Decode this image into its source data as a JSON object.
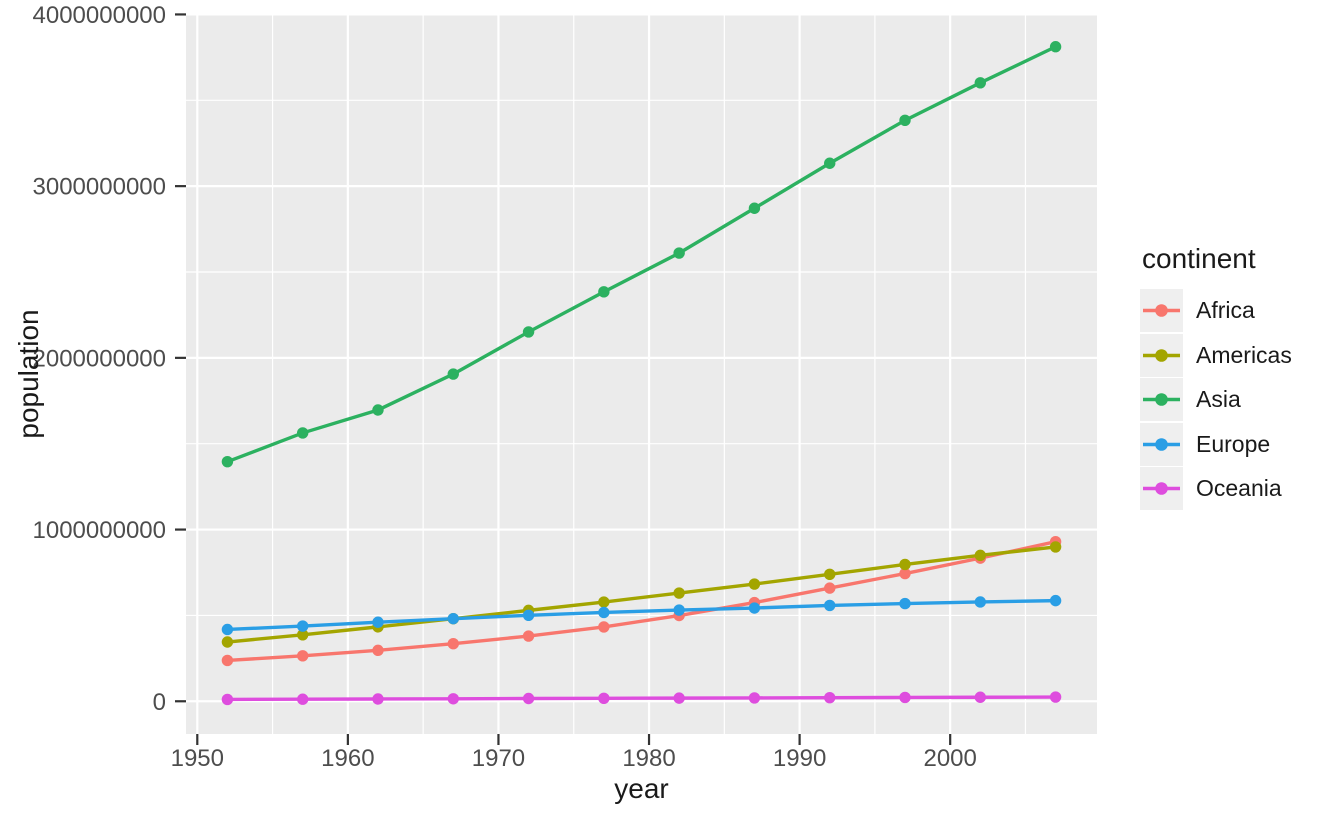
{
  "figure": {
    "background": "#FFFFFF",
    "panel_background": "#EBEBEB",
    "gridline_color": "#FFFFFF",
    "tick_mark_color": "#333333",
    "tick_label_color": "#4D4D4D",
    "axis_title_color": "#1A1A1A"
  },
  "legend": {
    "title": "continent",
    "key_background": "#EFEFEF",
    "position": "right",
    "items": [
      {
        "label": "Africa",
        "color": "#F8766D"
      },
      {
        "label": "Americas",
        "color": "#A3A500"
      },
      {
        "label": "Asia",
        "color": "#2CB160"
      },
      {
        "label": "Europe",
        "color": "#2A9EE5"
      },
      {
        "label": "Oceania",
        "color": "#DE4DDE"
      }
    ]
  },
  "chart_data": {
    "type": "line",
    "title": "",
    "xlabel": "year",
    "ylabel": "population",
    "legend_title": "continent",
    "legend_position": "right",
    "grid": "major+minor",
    "x": [
      1952,
      1957,
      1962,
      1967,
      1972,
      1977,
      1982,
      1987,
      1992,
      1997,
      2002,
      2007
    ],
    "series": [
      {
        "name": "Africa",
        "color": "#F8766D",
        "values": [
          237640501,
          264837738,
          296516865,
          335289489,
          379879541,
          433061021,
          499348587,
          574834110,
          659081517,
          743832984,
          833723916,
          929539692
        ]
      },
      {
        "name": "Americas",
        "color": "#A3A500",
        "values": [
          345152446,
          386953916,
          433270254,
          480746623,
          529384210,
          578067699,
          630290920,
          682753971,
          739274104,
          796900410,
          849772762,
          898871184
        ]
      },
      {
        "name": "Asia",
        "color": "#2CB160",
        "values": [
          1395357351,
          1562780599,
          1696357182,
          1905662900,
          2150972248,
          2384513556,
          2610135582,
          2871220762,
          3133292191,
          3383285500,
          3601802203,
          3811953827
        ]
      },
      {
        "name": "Europe",
        "color": "#2A9EE5",
        "values": [
          418120846,
          437890351,
          460355155,
          481178958,
          500635059,
          517164531,
          531266901,
          543094160,
          558142797,
          568944148,
          578223869,
          586098529
        ]
      },
      {
        "name": "Oceania",
        "color": "#DE4DDE",
        "values": [
          10686006,
          11941976,
          13283518,
          14600414,
          16106100,
          17239000,
          18394850,
          19574366,
          20919651,
          22241430,
          23454829,
          24549947
        ]
      }
    ],
    "x_ticks": {
      "values": [
        1950,
        1960,
        1970,
        1980,
        1990,
        2000
      ],
      "labels": [
        "1950",
        "1960",
        "1970",
        "1980",
        "1990",
        "2000"
      ]
    },
    "y_ticks": {
      "values": [
        0,
        1000000000,
        2000000000,
        3000000000,
        4000000000
      ],
      "labels": [
        "0",
        "1000000000",
        "2000000000",
        "3000000000",
        "4000000000"
      ]
    },
    "xlim": [
      1949.25,
      2009.75
    ],
    "ylim": [
      -190597691,
      4002551518
    ]
  }
}
